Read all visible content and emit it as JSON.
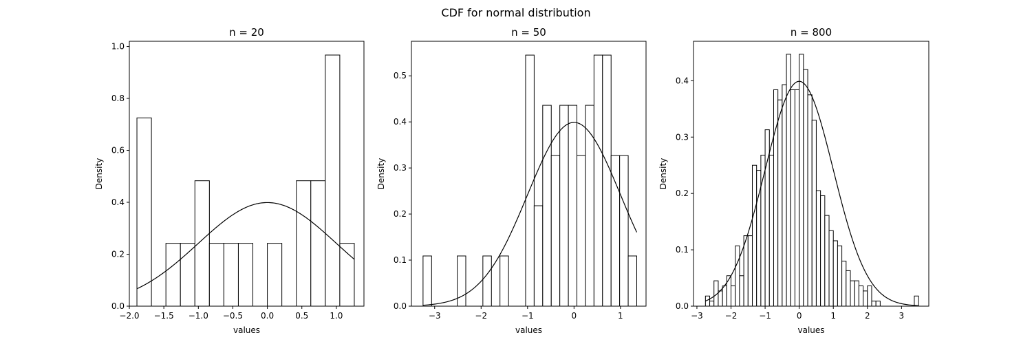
{
  "figure": {
    "suptitle": "CDF for normal distribution"
  },
  "chart_data": [
    {
      "type": "bar",
      "title": "n = 20",
      "xlabel": "values",
      "ylabel": "Density",
      "xlim": [
        -2.0,
        1.4
      ],
      "ylim": [
        0,
        1.02
      ],
      "xticks": [
        -2.0,
        -1.5,
        -1.0,
        -0.5,
        0.0,
        0.5,
        1.0
      ],
      "xtick_labels": [
        "−2.0",
        "−1.5",
        "−1.0",
        "−0.5",
        "0.0",
        "0.5",
        "1.0"
      ],
      "yticks": [
        0.0,
        0.2,
        0.4,
        0.6,
        0.8,
        1.0
      ],
      "ytick_labels": [
        "0.0",
        "0.2",
        "0.4",
        "0.6",
        "0.8",
        "1.0"
      ],
      "bin_edges": [
        -1.89,
        -1.68,
        -1.47,
        -1.26,
        -1.05,
        -0.84,
        -0.63,
        -0.42,
        -0.21,
        0.0,
        0.21,
        0.42,
        0.63,
        0.84,
        1.05,
        1.26
      ],
      "values": [
        0.725,
        0.0,
        0.242,
        0.242,
        0.483,
        0.242,
        0.242,
        0.242,
        0.0,
        0.242,
        0.0,
        0.483,
        0.483,
        0.967,
        0.242
      ],
      "curve": {
        "name": "normal pdf",
        "mean": 0,
        "sd": 1,
        "x_range": [
          -1.89,
          1.26
        ]
      }
    },
    {
      "type": "bar",
      "title": "n = 50",
      "xlabel": "values",
      "ylabel": "Density",
      "xlim": [
        -3.5,
        1.55
      ],
      "ylim": [
        0,
        0.575
      ],
      "xticks": [
        -3,
        -2,
        -1,
        0,
        1
      ],
      "xtick_labels": [
        "−3",
        "−2",
        "−1",
        "0",
        "1"
      ],
      "yticks": [
        0.0,
        0.1,
        0.2,
        0.3,
        0.4,
        0.5
      ],
      "ytick_labels": [
        "0.0",
        "0.1",
        "0.2",
        "0.3",
        "0.4",
        "0.5"
      ],
      "bin_edges": [
        -3.25,
        -3.066,
        -2.882,
        -2.698,
        -2.514,
        -2.33,
        -2.146,
        -1.962,
        -1.778,
        -1.594,
        -1.41,
        -1.226,
        -1.042,
        -0.858,
        -0.674,
        -0.49,
        -0.306,
        -0.122,
        0.062,
        0.246,
        0.43,
        0.614,
        0.798,
        0.982,
        1.166,
        1.35
      ],
      "values": [
        0.109,
        0.0,
        0.0,
        0.0,
        0.109,
        0.0,
        0.0,
        0.109,
        0.0,
        0.109,
        0.0,
        0.0,
        0.545,
        0.218,
        0.436,
        0.327,
        0.436,
        0.436,
        0.327,
        0.436,
        0.545,
        0.545,
        0.327,
        0.327,
        0.109
      ],
      "curve": {
        "name": "normal pdf",
        "mean": 0,
        "sd": 1,
        "x_range": [
          -3.25,
          1.35
        ]
      }
    },
    {
      "type": "bar",
      "title": "n = 800",
      "xlabel": "values",
      "ylabel": "Density",
      "xlim": [
        -3.1,
        3.8
      ],
      "ylim": [
        0,
        0.47
      ],
      "xticks": [
        -3,
        -2,
        -1,
        0,
        1,
        2,
        3
      ],
      "xtick_labels": [
        "−3",
        "−2",
        "−1",
        "0",
        "1",
        "2",
        "3"
      ],
      "yticks": [
        0.0,
        0.1,
        0.2,
        0.3,
        0.4
      ],
      "ytick_labels": [
        "0.0",
        "0.1",
        "0.2",
        "0.3",
        "0.4"
      ],
      "bin_edges": [
        -2.75,
        -2.625,
        -2.5,
        -2.375,
        -2.25,
        -2.125,
        -2.0,
        -1.875,
        -1.75,
        -1.625,
        -1.5,
        -1.375,
        -1.25,
        -1.125,
        -1.0,
        -0.875,
        -0.75,
        -0.625,
        -0.5,
        -0.375,
        -0.25,
        -0.125,
        0.0,
        0.125,
        0.25,
        0.375,
        0.5,
        0.625,
        0.75,
        0.875,
        1.0,
        1.125,
        1.25,
        1.375,
        1.5,
        1.625,
        1.75,
        1.875,
        2.0,
        2.125,
        2.25,
        2.375,
        2.5,
        2.625,
        2.75,
        2.875,
        3.0,
        3.125,
        3.25,
        3.375,
        3.5
      ],
      "values": [
        0.018,
        0.009,
        0.045,
        0.027,
        0.036,
        0.054,
        0.036,
        0.107,
        0.054,
        0.125,
        0.125,
        0.25,
        0.241,
        0.268,
        0.313,
        0.268,
        0.384,
        0.366,
        0.393,
        0.447,
        0.384,
        0.384,
        0.447,
        0.42,
        0.375,
        0.33,
        0.205,
        0.196,
        0.161,
        0.134,
        0.116,
        0.107,
        0.08,
        0.063,
        0.045,
        0.045,
        0.036,
        0.027,
        0.036,
        0.009,
        0.009,
        0.0,
        0.0,
        0.0,
        0.0,
        0.0,
        0.0,
        0.0,
        0.0,
        0.018
      ],
      "curve": {
        "name": "normal pdf",
        "mean": 0,
        "sd": 1,
        "x_range": [
          -2.75,
          3.5
        ]
      }
    }
  ]
}
